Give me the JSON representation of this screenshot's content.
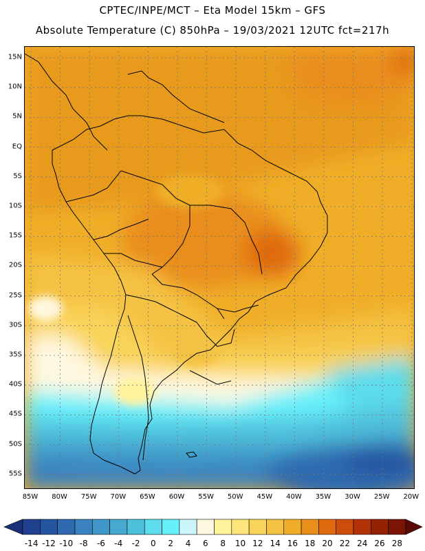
{
  "header": {
    "line1": "CPTEC/INPE/MCT –  Eta Model 15km – GFS",
    "line2": "Absolute Temperature (C) 850hPa – 19/03/2021 12UTC fct=217h"
  },
  "map": {
    "region": "South America",
    "lat_range": [
      -58,
      17
    ],
    "lon_range": [
      -86,
      -20
    ],
    "lat_labels": [
      "15N",
      "10N",
      "5N",
      "EQ",
      "5S",
      "10S",
      "15S",
      "20S",
      "25S",
      "30S",
      "35S",
      "40S",
      "45S",
      "50S",
      "55S"
    ],
    "lon_labels": [
      "85W",
      "80W",
      "75W",
      "70W",
      "65W",
      "60W",
      "55W",
      "50W",
      "45W",
      "40W",
      "35W",
      "30W",
      "25W",
      "20W"
    ],
    "gridlines": "dotted"
  },
  "colorbar": {
    "labels": [
      "-14",
      "-12",
      "-10",
      "-8",
      "-6",
      "-4",
      "-2",
      "0",
      "2",
      "4",
      "6",
      "8",
      "10",
      "12",
      "14",
      "16",
      "18",
      "20",
      "22",
      "24",
      "26",
      "28"
    ],
    "colors": [
      "#1f3f8f",
      "#2554a0",
      "#2f6ab0",
      "#3a82c0",
      "#3f98c8",
      "#45a9d0",
      "#4fc0dc",
      "#5cdcec",
      "#66f0fa",
      "#ccf5fb",
      "#fff8e0",
      "#fff39c",
      "#fde57a",
      "#f9d45a",
      "#f4c242",
      "#f0ae28",
      "#e98e1a",
      "#df6a10",
      "#cf4d0c",
      "#b43208",
      "#962206",
      "#7a1405"
    ],
    "low_arrow_color": "#1a2f7a",
    "high_arrow_color": "#5a0a05"
  }
}
